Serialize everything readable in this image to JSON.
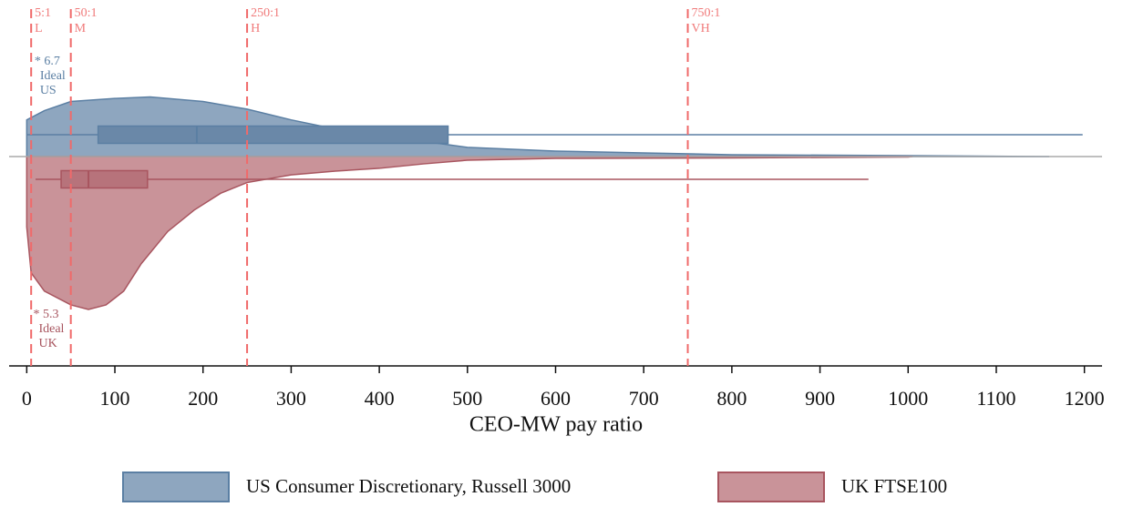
{
  "chart_data": {
    "type": "half-violin-box",
    "x_label": "CEO-MW pay ratio",
    "xlim": [
      -20,
      1220
    ],
    "xticks": [
      0,
      100,
      200,
      300,
      400,
      500,
      600,
      700,
      800,
      900,
      1000,
      1100,
      1200
    ],
    "reference_lines": [
      {
        "value": 5,
        "label": "5:1",
        "level": "L"
      },
      {
        "value": 50,
        "label": "50:1",
        "level": "M"
      },
      {
        "value": 250,
        "label": "250:1",
        "level": "H"
      },
      {
        "value": 750,
        "label": "750:1",
        "level": "VH"
      }
    ],
    "series": [
      {
        "name": "US Consumer Discretionary, Russell 3000",
        "side": "up",
        "color": "#5b7fa3",
        "fill": "#8ea6bf",
        "box_fill": "#6a88a8",
        "ideal": {
          "value": 6.7,
          "label": "* 6.7",
          "lines": [
            "Ideal",
            "US"
          ]
        },
        "x": [
          0,
          20,
          50,
          100,
          140,
          200,
          250,
          300,
          350,
          400,
          450,
          500,
          600,
          700,
          800,
          1000,
          1160
        ],
        "density": [
          24,
          30,
          36,
          38,
          39,
          36,
          31,
          24,
          18,
          13,
          10,
          6,
          3.6,
          2.4,
          1.2,
          0.6,
          0
        ],
        "box": {
          "whisker_low": 0,
          "q1": 81,
          "median": 193,
          "q3": 478,
          "whisker_high": 1198
        }
      },
      {
        "name": "UK FTSE100",
        "side": "down",
        "color": "#a8555f",
        "fill": "#c99399",
        "box_fill": "#b7737b",
        "ideal": {
          "value": 5.3,
          "label": "* 5.3",
          "lines": [
            "Ideal",
            "UK"
          ]
        },
        "x": [
          0,
          5,
          20,
          50,
          70,
          90,
          110,
          130,
          160,
          190,
          220,
          250,
          300,
          350,
          400,
          450,
          500,
          600,
          800,
          1000,
          1005
        ],
        "density": [
          46,
          76,
          88,
          97,
          100,
          97,
          88,
          70,
          49,
          35,
          24,
          17,
          12,
          9.5,
          7.7,
          4.8,
          2.4,
          1.2,
          0.9,
          0.3,
          0
        ],
        "box": {
          "whisker_low": 10,
          "q1": 39,
          "median": 70,
          "q3": 137,
          "whisker_high": 955
        }
      }
    ]
  }
}
